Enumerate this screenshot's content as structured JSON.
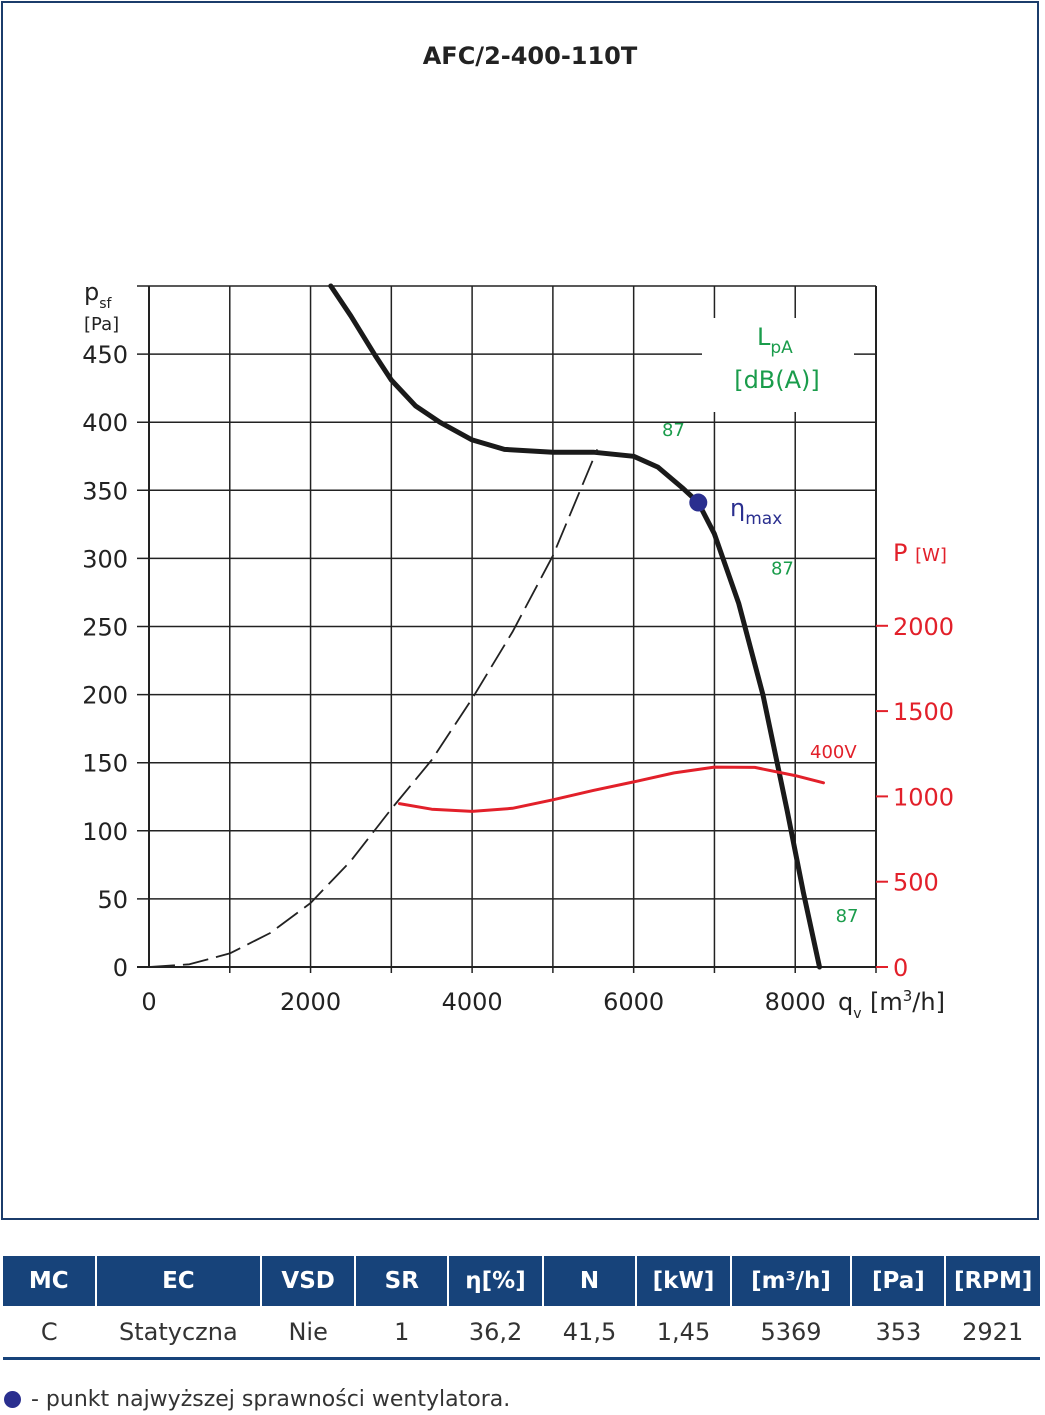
{
  "colors": {
    "frame": "#1b3c6b",
    "pressure_curve": "#1a1a1a",
    "power_curve": "#e2202a",
    "system_curve": "#222222",
    "noise_labels": "#1a9c4b",
    "eta_point": "#2a2f8f",
    "table_header_bg": "#17437a"
  },
  "chart_data": {
    "type": "line",
    "title": "AFC/2-400-110T",
    "x_axis": {
      "label": "q",
      "label_sub": "v",
      "unit": "[m3/h]",
      "ticks": [
        "0",
        "2000",
        "4000",
        "6000",
        "8000"
      ],
      "range": [
        0,
        9000
      ]
    },
    "y_axis_left": {
      "label": "p",
      "label_sub": "sf",
      "unit": "[Pa]",
      "ticks": [
        "0",
        "50",
        "100",
        "150",
        "200",
        "250",
        "300",
        "350",
        "400",
        "450"
      ],
      "range": [
        0,
        500
      ]
    },
    "y_axis_right": {
      "label": "P",
      "unit": "[W]",
      "ticks": [
        "0",
        "500",
        "1000",
        "1500",
        "2000"
      ],
      "range": [
        0,
        2000
      ]
    },
    "grid": true,
    "series": [
      {
        "id": "pressure",
        "axis": "left",
        "style": "solid",
        "x": [
          2250,
          2500,
          2800,
          3000,
          3300,
          3600,
          4000,
          4400,
          5000,
          5500,
          6000,
          6300,
          6600,
          6800,
          7000,
          7300,
          7600,
          7900,
          8100,
          8300
        ],
        "y": [
          500,
          478,
          449,
          431,
          412,
          400,
          387,
          380,
          378,
          378,
          375,
          367,
          352,
          341,
          318,
          267,
          200,
          115,
          55,
          0
        ]
      },
      {
        "id": "system",
        "axis": "left",
        "style": "dashed",
        "x": [
          0,
          500,
          1000,
          1500,
          2000,
          2500,
          3000,
          3500,
          4000,
          4500,
          5000,
          5550
        ],
        "y": [
          0,
          2,
          10,
          25,
          47,
          78,
          116,
          152,
          197,
          246,
          302,
          380
        ]
      },
      {
        "name": "400V",
        "id": "power",
        "axis": "right",
        "style": "solid",
        "x": [
          3100,
          3500,
          4000,
          4500,
          5000,
          5500,
          6000,
          6500,
          7000,
          7500,
          8000,
          8350
        ],
        "y": [
          958,
          925,
          912,
          930,
          980,
          1035,
          1085,
          1138,
          1172,
          1170,
          1122,
          1080
        ]
      }
    ],
    "eta_max": {
      "label": "η",
      "label_sub": "max",
      "x": 6800,
      "y": 341
    },
    "noise_title": "L",
    "noise_title_sub": "pA",
    "noise_unit": "[dB(A)]",
    "noise_labels": [
      {
        "text": "87",
        "x": 6350,
        "y": 390
      },
      {
        "text": "87",
        "x": 7700,
        "y": 288
      },
      {
        "text": "87",
        "x": 8500,
        "y": 33
      }
    ]
  },
  "table": {
    "headers": [
      "MC",
      "EC",
      "VSD",
      "SR",
      "η[%]",
      "N",
      "[kW]",
      "[m³/h]",
      "[Pa]",
      "[RPM]"
    ],
    "row": [
      "C",
      "Statyczna",
      "Nie",
      "1",
      "36,2",
      "41,5",
      "1,45",
      "5369",
      "353",
      "2921"
    ]
  },
  "legend_text": "- punkt najwyższej sprawności wentylatora."
}
